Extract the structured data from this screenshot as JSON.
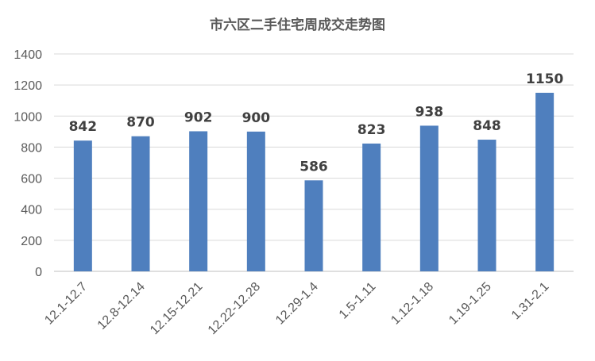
{
  "chart_data": {
    "type": "bar",
    "title": "市六区二手住宅周成交走势图",
    "categories": [
      "12.1-12.7",
      "12.8-12.14",
      "12.15-12.21",
      "12.22-12.28",
      "12.29-1.4",
      "1.5-1.11",
      "1.12-1.18",
      "1.19-1.25",
      "1.31-2.1"
    ],
    "values": [
      842,
      870,
      902,
      900,
      586,
      823,
      938,
      848,
      1150
    ],
    "ylim": [
      0,
      1400
    ],
    "yticks": [
      0,
      200,
      400,
      600,
      800,
      1000,
      1200,
      1400
    ],
    "grid": true,
    "data_labels": true,
    "colors": {
      "bar": "#4F7FBE",
      "grid": "#D9D9D9",
      "axis": "#BFBFBF"
    }
  }
}
